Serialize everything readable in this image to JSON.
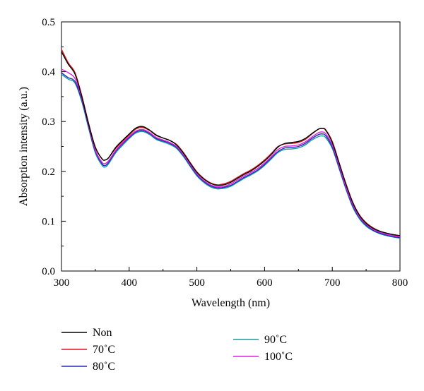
{
  "chart_data": {
    "type": "line",
    "xlabel": "Wavelength (nm)",
    "ylabel": "Absorption intensity (a.u.)",
    "xlim": [
      300,
      800
    ],
    "ylim": [
      0.0,
      0.5
    ],
    "x_ticks": [
      "300",
      "400",
      "500",
      "600",
      "700",
      "800"
    ],
    "y_ticks": [
      "0.0",
      "0.1",
      "0.2",
      "0.3",
      "0.4",
      "0.5"
    ],
    "grid": false,
    "legend_position": "bottom-left",
    "x": [
      300,
      310,
      320,
      330,
      340,
      350,
      360,
      365,
      370,
      380,
      390,
      400,
      410,
      420,
      430,
      440,
      450,
      460,
      470,
      480,
      490,
      500,
      510,
      520,
      530,
      540,
      550,
      560,
      570,
      580,
      590,
      600,
      610,
      620,
      630,
      640,
      650,
      660,
      670,
      680,
      685,
      690,
      700,
      710,
      720,
      730,
      740,
      750,
      760,
      770,
      780,
      790,
      800
    ],
    "series": [
      {
        "name": "Non",
        "color": "#000000",
        "values": [
          0.44,
          0.415,
          0.395,
          0.35,
          0.295,
          0.248,
          0.225,
          0.223,
          0.228,
          0.248,
          0.262,
          0.275,
          0.287,
          0.29,
          0.283,
          0.273,
          0.267,
          0.262,
          0.253,
          0.237,
          0.217,
          0.198,
          0.185,
          0.176,
          0.172,
          0.173,
          0.178,
          0.186,
          0.194,
          0.201,
          0.21,
          0.221,
          0.234,
          0.249,
          0.256,
          0.258,
          0.26,
          0.266,
          0.276,
          0.285,
          0.286,
          0.283,
          0.258,
          0.217,
          0.175,
          0.138,
          0.112,
          0.096,
          0.086,
          0.08,
          0.076,
          0.073,
          0.071
        ]
      },
      {
        "name": "70˚C",
        "color": "#e0141b",
        "values": [
          0.445,
          0.418,
          0.398,
          0.352,
          0.297,
          0.249,
          0.225,
          0.223,
          0.228,
          0.246,
          0.26,
          0.273,
          0.285,
          0.288,
          0.282,
          0.272,
          0.267,
          0.262,
          0.254,
          0.238,
          0.218,
          0.199,
          0.186,
          0.177,
          0.173,
          0.175,
          0.18,
          0.188,
          0.196,
          0.203,
          0.212,
          0.223,
          0.236,
          0.25,
          0.255,
          0.256,
          0.258,
          0.264,
          0.275,
          0.285,
          0.286,
          0.284,
          0.26,
          0.218,
          0.176,
          0.139,
          0.113,
          0.097,
          0.087,
          0.08,
          0.076,
          0.073,
          0.071
        ]
      },
      {
        "name": "80˚C",
        "color": "#1f2fb5",
        "values": [
          0.398,
          0.388,
          0.38,
          0.343,
          0.29,
          0.24,
          0.215,
          0.212,
          0.219,
          0.24,
          0.255,
          0.268,
          0.279,
          0.282,
          0.276,
          0.266,
          0.261,
          0.256,
          0.248,
          0.232,
          0.212,
          0.193,
          0.18,
          0.171,
          0.167,
          0.168,
          0.172,
          0.18,
          0.188,
          0.195,
          0.203,
          0.214,
          0.227,
          0.24,
          0.247,
          0.248,
          0.25,
          0.256,
          0.266,
          0.274,
          0.275,
          0.272,
          0.249,
          0.208,
          0.167,
          0.131,
          0.107,
          0.092,
          0.082,
          0.076,
          0.072,
          0.069,
          0.067
        ]
      },
      {
        "name": "90˚C",
        "color": "#1a9a9a",
        "values": [
          0.395,
          0.385,
          0.377,
          0.34,
          0.287,
          0.237,
          0.212,
          0.209,
          0.216,
          0.237,
          0.252,
          0.266,
          0.277,
          0.28,
          0.274,
          0.264,
          0.259,
          0.254,
          0.246,
          0.23,
          0.21,
          0.191,
          0.178,
          0.169,
          0.165,
          0.166,
          0.17,
          0.178,
          0.186,
          0.193,
          0.201,
          0.212,
          0.225,
          0.238,
          0.244,
          0.245,
          0.247,
          0.253,
          0.263,
          0.27,
          0.271,
          0.268,
          0.246,
          0.206,
          0.165,
          0.129,
          0.105,
          0.09,
          0.081,
          0.075,
          0.071,
          0.068,
          0.066
        ]
      },
      {
        "name": "100˚C",
        "color": "#e020e0",
        "values": [
          0.405,
          0.398,
          0.386,
          0.347,
          0.293,
          0.243,
          0.218,
          0.216,
          0.222,
          0.242,
          0.257,
          0.27,
          0.281,
          0.284,
          0.278,
          0.268,
          0.263,
          0.258,
          0.25,
          0.234,
          0.214,
          0.195,
          0.182,
          0.173,
          0.169,
          0.17,
          0.175,
          0.183,
          0.191,
          0.198,
          0.206,
          0.217,
          0.23,
          0.244,
          0.25,
          0.251,
          0.253,
          0.259,
          0.269,
          0.278,
          0.279,
          0.276,
          0.253,
          0.212,
          0.17,
          0.134,
          0.109,
          0.094,
          0.084,
          0.078,
          0.074,
          0.071,
          0.069
        ]
      }
    ]
  }
}
